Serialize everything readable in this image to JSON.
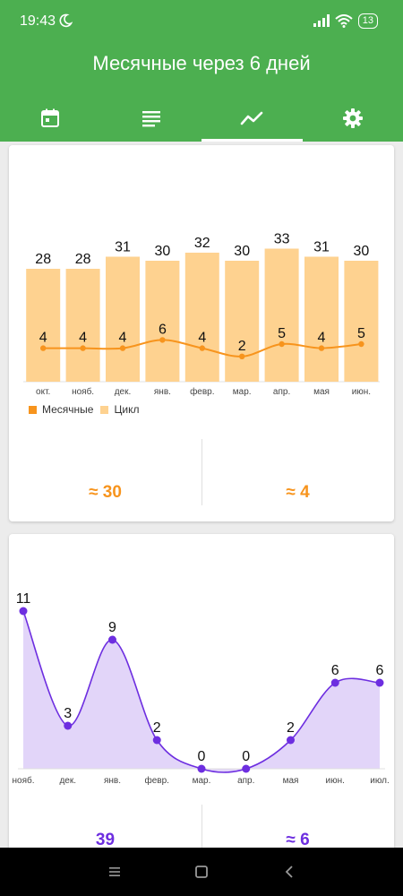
{
  "status": {
    "time": "19:43",
    "battery": "13"
  },
  "header": {
    "title": "Месячные через 6 дней"
  },
  "tabs": [
    {
      "icon": "calendar-icon"
    },
    {
      "icon": "list-icon"
    },
    {
      "icon": "chart-icon",
      "active": true
    },
    {
      "icon": "gear-icon"
    }
  ],
  "colors": {
    "primary": "#4caf50",
    "period": "#f7941d",
    "cycle": "#fed290",
    "purple": "#6d2ee0",
    "purple_fill": "#e2d5f9"
  },
  "stats1": {
    "cycle_avg": "≈ 30",
    "period_avg": "≈ 4"
  },
  "stats2": {
    "left": "39",
    "right": "≈ 6"
  },
  "chart_data": [
    {
      "type": "bar",
      "categories": [
        "окт.",
        "нояб.",
        "дек.",
        "янв.",
        "февр.",
        "мар.",
        "апр.",
        "мая",
        "июн."
      ],
      "series": [
        {
          "name": "Цикл",
          "type": "bar",
          "values": [
            28,
            28,
            31,
            30,
            32,
            30,
            33,
            31,
            30
          ]
        },
        {
          "name": "Месячные",
          "type": "line",
          "values": [
            4,
            4,
            4,
            6,
            4,
            2,
            5,
            4,
            5
          ]
        }
      ],
      "legend": "bottom-left"
    },
    {
      "type": "area",
      "categories": [
        "нояб.",
        "дек.",
        "янв.",
        "февр.",
        "мар.",
        "апр.",
        "мая",
        "июн.",
        "июл."
      ],
      "values": [
        11,
        3,
        9,
        2,
        0,
        0,
        2,
        6,
        6
      ]
    }
  ]
}
